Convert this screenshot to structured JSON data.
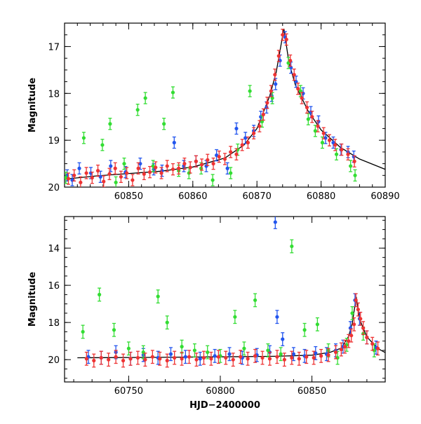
{
  "chart_data": [
    {
      "type": "scatter",
      "title": "",
      "xlabel": "",
      "ylabel": "Magnitude",
      "xlim": [
        60840,
        60890
      ],
      "ylim": [
        20,
        16.5
      ],
      "y_inverted": true,
      "x_ticks": [
        60850,
        60860,
        60870,
        60880,
        60890
      ],
      "y_ticks": [
        17,
        18,
        19,
        20
      ],
      "grid": false,
      "model_curve": {
        "color": "#000000",
        "x": [
          60840,
          60845,
          60850,
          60855,
          60860,
          60865,
          60868,
          60870,
          60872,
          60873,
          60874.2,
          60875,
          60876,
          60878,
          60880,
          60883,
          60886,
          60890
        ],
        "y": [
          19.83,
          19.76,
          19.71,
          19.66,
          19.57,
          19.38,
          19.1,
          18.75,
          18.05,
          17.55,
          16.62,
          17.35,
          17.82,
          18.38,
          18.78,
          19.15,
          19.4,
          19.62
        ]
      },
      "series": [
        {
          "color": "#2255ee",
          "x": [
            60840.4,
            60841.2,
            60842.3,
            60844.1,
            60845.6,
            60847.2,
            60849.5,
            60851.8,
            60853.9,
            60855.2,
            60857.1,
            60858.6,
            60860.5,
            60862.1,
            60863.7,
            60865.4,
            60866.8,
            60868.2,
            60869.5,
            60870.6,
            60871.5,
            60872.3,
            60872.9,
            60873.6,
            60874.4,
            60875.3,
            60876.1,
            60877.2,
            60878.4,
            60879.6,
            60880.7,
            60881.9,
            60883.1,
            60884.2,
            60885.1
          ],
          "y": [
            19.75,
            19.85,
            19.6,
            19.7,
            19.78,
            19.55,
            19.68,
            19.5,
            19.62,
            19.65,
            19.05,
            19.55,
            19.45,
            19.55,
            19.32,
            19.6,
            18.75,
            18.95,
            18.8,
            18.5,
            18.3,
            18.05,
            17.8,
            17.3,
            16.8,
            17.45,
            17.75,
            18.0,
            18.4,
            18.6,
            18.95,
            19.05,
            19.2,
            19.25,
            19.35
          ]
        },
        {
          "color": "#33dd33",
          "x": [
            60840.2,
            60843.0,
            60845.9,
            60847.1,
            60848.0,
            60849.3,
            60851.4,
            60852.6,
            60853.8,
            60855.5,
            60856.9,
            60857.8,
            60859.4,
            60861.3,
            60863.1,
            60865.9,
            60867.0,
            60868.9,
            60870.8,
            60872.4,
            60874.9,
            60876.8,
            60878.0,
            60879.1,
            60880.2,
            60882.4,
            60884.6,
            60885.3
          ],
          "y": [
            19.8,
            18.95,
            19.1,
            18.65,
            19.9,
            19.5,
            18.35,
            18.1,
            19.55,
            18.65,
            17.98,
            19.65,
            19.7,
            19.6,
            19.85,
            19.7,
            19.2,
            17.95,
            18.6,
            18.1,
            17.35,
            17.95,
            18.55,
            18.8,
            19.05,
            19.3,
            19.55,
            19.75
          ]
        },
        {
          "color": "#ee3333",
          "x": [
            60840.6,
            60841.5,
            60842.5,
            60843.4,
            60844.3,
            60845.2,
            60846.1,
            60847.0,
            60847.9,
            60848.8,
            60849.7,
            60850.6,
            60851.5,
            60852.4,
            60853.3,
            60854.2,
            60855.1,
            60856.0,
            60856.9,
            60857.8,
            60858.7,
            60859.6,
            60860.5,
            60861.4,
            60862.3,
            60863.2,
            60864.1,
            60865.0,
            60865.9,
            60866.8,
            60867.7,
            60868.6,
            60869.5,
            60870.4,
            60871.0,
            60871.6,
            60872.2,
            60872.8,
            60873.4,
            60874.0,
            60874.6,
            60875.2,
            60875.8,
            60876.4,
            60877.0,
            60877.8,
            60878.6,
            60879.5,
            60880.4,
            60881.3,
            60882.2,
            60883.2,
            60884.2,
            60885.2
          ],
          "y": [
            19.82,
            19.75,
            19.9,
            19.7,
            19.8,
            19.65,
            19.88,
            19.72,
            19.6,
            19.78,
            19.7,
            19.85,
            19.6,
            19.72,
            19.68,
            19.58,
            19.7,
            19.55,
            19.62,
            19.6,
            19.5,
            19.58,
            19.45,
            19.52,
            19.42,
            19.5,
            19.35,
            19.4,
            19.25,
            19.3,
            19.1,
            19.05,
            18.85,
            18.7,
            18.45,
            18.2,
            17.95,
            17.6,
            17.2,
            16.75,
            16.85,
            17.3,
            17.6,
            17.9,
            18.1,
            18.3,
            18.5,
            18.7,
            18.85,
            19.0,
            19.1,
            19.2,
            19.3,
            19.45
          ]
        }
      ]
    },
    {
      "type": "scatter",
      "title": "",
      "xlabel": "HJD−2400000",
      "ylabel": "Magnitude",
      "xlim": [
        60715,
        60890
      ],
      "ylim": [
        21.2,
        12.3
      ],
      "y_inverted": true,
      "x_ticks": [
        60750,
        60800,
        60850
      ],
      "y_ticks": [
        14,
        16,
        18,
        20
      ],
      "grid": false,
      "model_curve": {
        "color": "#000000",
        "x": [
          60722,
          60760,
          60800,
          60830,
          60850,
          60860,
          60866,
          60870,
          60872,
          60874.2,
          60876,
          60880,
          60886,
          60890
        ],
        "y": [
          19.9,
          19.88,
          19.85,
          19.82,
          19.76,
          19.6,
          19.38,
          18.75,
          18.05,
          16.62,
          17.82,
          18.78,
          19.4,
          19.62
        ]
      },
      "series": [
        {
          "color": "#2255ee",
          "x": [
            60728,
            60735,
            60743,
            60751,
            60758,
            60766,
            60773,
            60781,
            60789,
            60797,
            60805,
            60812,
            60820,
            60827,
            60830,
            60831,
            60834,
            60840,
            60846,
            60852,
            60858,
            60863,
            60867,
            60871,
            60873.5,
            60876,
            60880,
            60885
          ],
          "y": [
            19.85,
            19.9,
            19.6,
            19.95,
            19.75,
            19.9,
            19.7,
            19.85,
            19.95,
            19.8,
            19.7,
            19.9,
            19.75,
            19.6,
            12.6,
            17.7,
            18.9,
            19.7,
            19.8,
            19.65,
            19.7,
            19.5,
            19.3,
            18.3,
            16.8,
            17.8,
            18.8,
            19.35
          ]
        },
        {
          "color": "#33dd33",
          "x": [
            60725,
            60734,
            60742,
            60750,
            60758,
            60766,
            60771,
            60779,
            60786,
            60793,
            60800,
            60808,
            60813,
            60819,
            60826,
            60833,
            60839,
            60846,
            60853,
            60859,
            60864,
            60869,
            60872,
            60878,
            60884
          ],
          "y": [
            18.5,
            16.5,
            18.4,
            19.4,
            19.6,
            16.6,
            18.0,
            19.3,
            19.5,
            19.6,
            19.8,
            17.7,
            19.4,
            16.8,
            19.5,
            19.7,
            13.9,
            18.4,
            18.1,
            19.5,
            19.9,
            19.2,
            17.5,
            18.6,
            19.5
          ]
        },
        {
          "color": "#ee3333",
          "x": [
            60727,
            60731,
            60735,
            60739,
            60743,
            60747,
            60751,
            60755,
            60759,
            60763,
            60767,
            60771,
            60775,
            60779,
            60783,
            60787,
            60791,
            60795,
            60799,
            60803,
            60807,
            60811,
            60815,
            60819,
            60823,
            60827,
            60831,
            60835,
            60839,
            60843,
            60847,
            60851,
            60855,
            60859,
            60863,
            60866,
            60868,
            60870,
            60871.5,
            60873,
            60874,
            60875.2,
            60876.5,
            60878,
            60880,
            60883,
            60886
          ],
          "y": [
            19.95,
            20.05,
            19.9,
            20.0,
            19.85,
            20.05,
            19.95,
            19.9,
            20.0,
            19.85,
            19.95,
            20.05,
            19.9,
            19.95,
            19.85,
            20.0,
            19.9,
            19.95,
            19.85,
            19.9,
            20.0,
            19.85,
            19.95,
            19.8,
            19.9,
            19.95,
            19.85,
            20.0,
            19.9,
            19.95,
            19.85,
            19.9,
            19.8,
            19.75,
            19.6,
            19.45,
            19.3,
            19.0,
            18.7,
            18.1,
            16.8,
            17.3,
            17.8,
            18.3,
            18.8,
            19.15,
            19.4
          ]
        }
      ]
    }
  ]
}
